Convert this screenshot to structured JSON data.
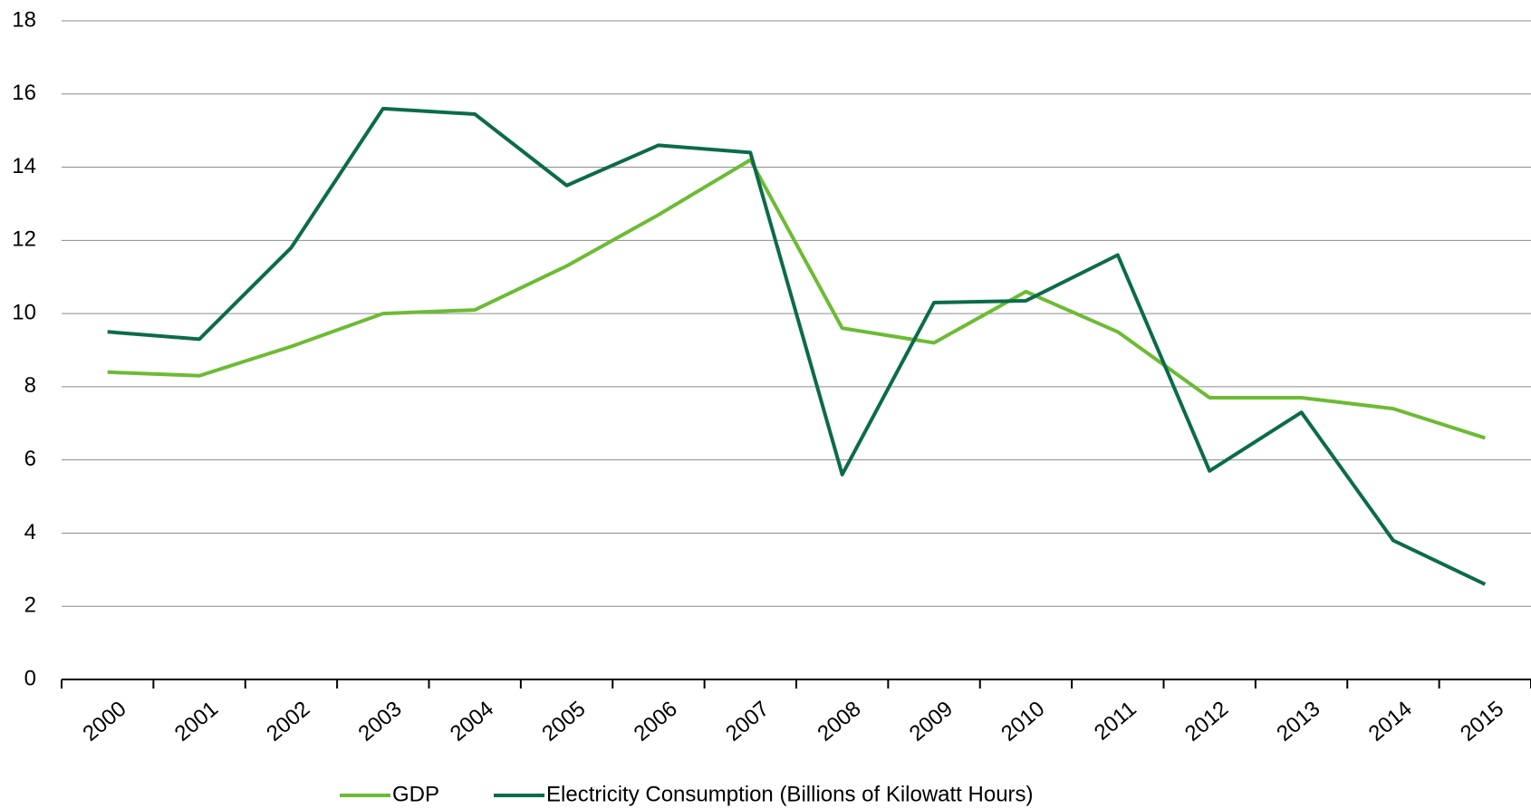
{
  "chart_data": {
    "type": "line",
    "categories": [
      "2000",
      "2001",
      "2002",
      "2003",
      "2004",
      "2005",
      "2006",
      "2007",
      "2008",
      "2009",
      "2010",
      "2011",
      "2012",
      "2013",
      "2014",
      "2015"
    ],
    "series": [
      {
        "name": "GDP",
        "color": "#6cbb34",
        "values": [
          8.4,
          8.3,
          9.1,
          10.0,
          10.1,
          11.3,
          12.7,
          14.2,
          9.6,
          9.2,
          10.6,
          9.5,
          7.7,
          7.7,
          7.4,
          6.6
        ]
      },
      {
        "name": "Electricity Consumption (Billions of Kilowatt Hours)",
        "color": "#0b6b4b",
        "values": [
          9.5,
          9.3,
          11.8,
          15.6,
          15.45,
          13.5,
          14.6,
          14.4,
          5.6,
          10.3,
          10.35,
          11.6,
          5.7,
          7.3,
          3.8,
          2.6
        ]
      }
    ],
    "ylim": [
      0,
      18
    ],
    "yticks": [
      0,
      2,
      4,
      6,
      8,
      10,
      12,
      14,
      16,
      18
    ],
    "grid": true
  }
}
